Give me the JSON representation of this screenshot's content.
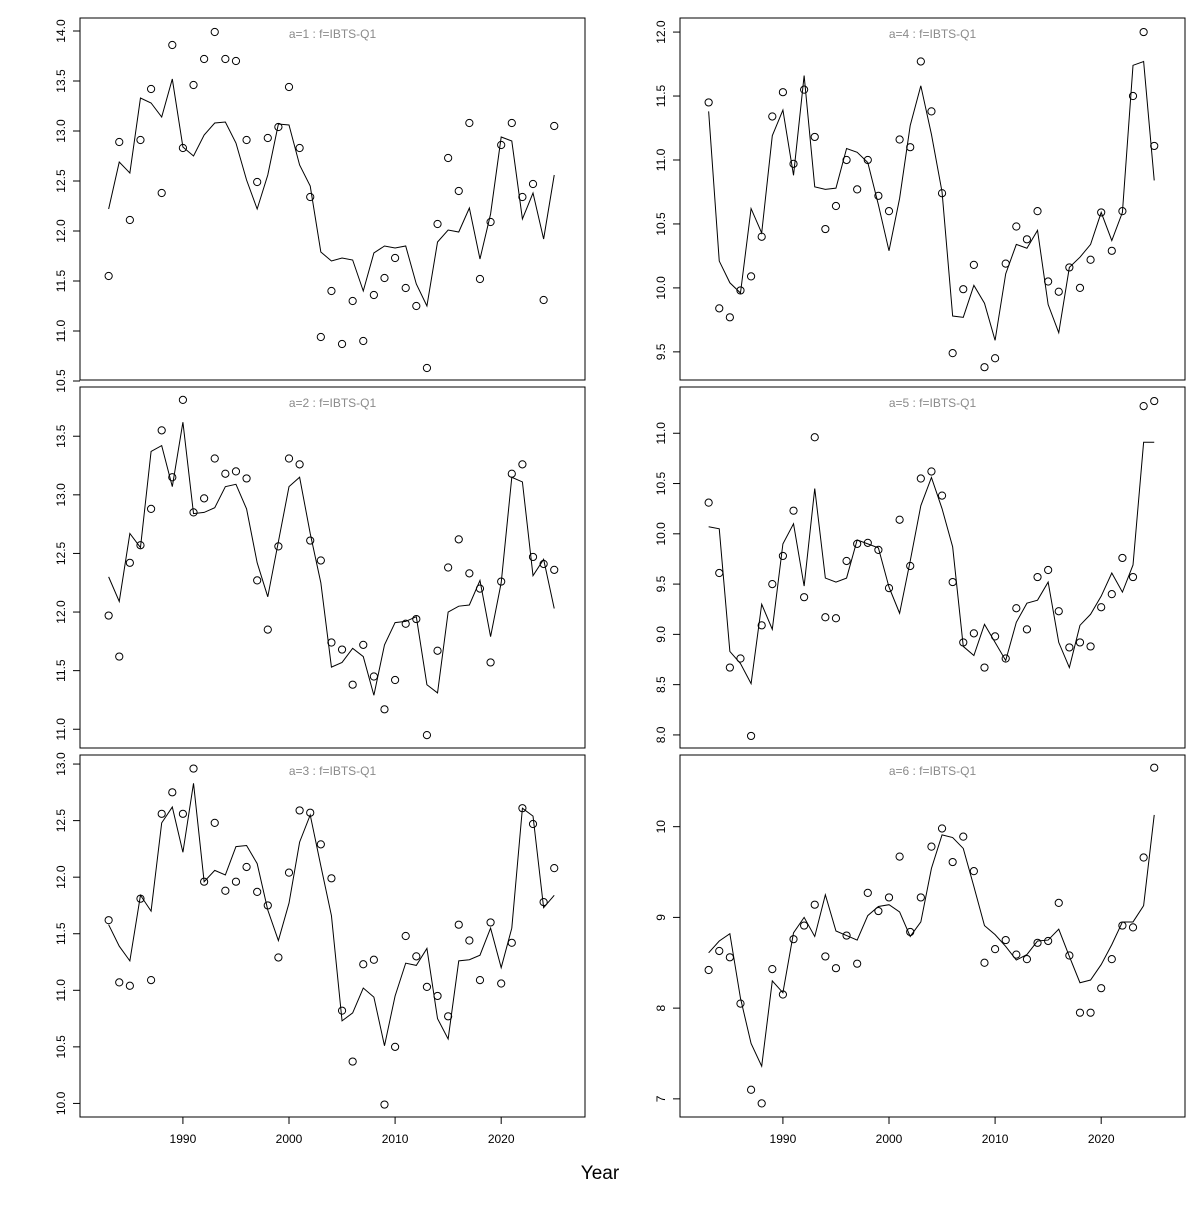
{
  "xlabel": "Year",
  "chart_data": [
    {
      "type": "line",
      "title": "a=1 : f=IBTS-Q1",
      "x": [
        1983,
        1984,
        1985,
        1986,
        1987,
        1988,
        1989,
        1990,
        1991,
        1992,
        1993,
        1994,
        1995,
        1996,
        1997,
        1998,
        1999,
        2000,
        2001,
        2002,
        2003,
        2004,
        2005,
        2006,
        2007,
        2008,
        2009,
        2010,
        2011,
        2012,
        2013,
        2014,
        2015,
        2016,
        2017,
        2018,
        2019,
        2020,
        2021,
        2022,
        2023,
        2024,
        2025
      ],
      "xlim": [
        1980.3,
        2027.9
      ],
      "ylim": [
        10.51,
        14.13
      ],
      "yticks": [
        10.5,
        {
          "value": 11,
          "label": "11.0"
        },
        11.5,
        {
          "value": 12,
          "label": "12.0"
        },
        12.5,
        {
          "value": 13,
          "label": "13.0"
        },
        13.5,
        {
          "value": 14,
          "label": "14.0"
        }
      ],
      "series": [
        {
          "kind": "points",
          "color": "#000000",
          "values": [
            11.55,
            12.89,
            12.11,
            12.91,
            13.42,
            12.38,
            13.86,
            12.83,
            13.46,
            13.72,
            13.99,
            13.72,
            13.7,
            12.91,
            12.49,
            12.93,
            13.04,
            13.44,
            12.83,
            12.34,
            10.94,
            11.4,
            10.87,
            11.3,
            10.9,
            11.36,
            11.53,
            11.73,
            11.43,
            11.25,
            10.63,
            12.07,
            12.73,
            12.4,
            13.08,
            11.52,
            12.09,
            12.86,
            13.08,
            12.34,
            12.47,
            11.31,
            13.05
          ]
        },
        {
          "kind": "line",
          "color": "#000000",
          "values": [
            12.22,
            12.69,
            12.58,
            13.33,
            13.28,
            13.14,
            13.52,
            12.84,
            12.75,
            12.96,
            13.08,
            13.09,
            12.88,
            12.51,
            12.22,
            12.56,
            13.07,
            13.06,
            12.66,
            12.45,
            11.79,
            11.7,
            11.73,
            11.71,
            11.4,
            11.78,
            11.85,
            11.83,
            11.85,
            11.47,
            11.25,
            11.89,
            12.01,
            11.99,
            12.23,
            11.72,
            12.17,
            12.94,
            12.9,
            12.12,
            12.38,
            11.92,
            12.56
          ]
        }
      ]
    },
    {
      "type": "line",
      "title": "a=2 : f=IBTS-Q1",
      "x": [
        1983,
        1984,
        1985,
        1986,
        1987,
        1988,
        1989,
        1990,
        1991,
        1992,
        1993,
        1994,
        1995,
        1996,
        1997,
        1998,
        1999,
        2000,
        2001,
        2002,
        2003,
        2004,
        2005,
        2006,
        2007,
        2008,
        2009,
        2010,
        2011,
        2012,
        2013,
        2014,
        2015,
        2016,
        2017,
        2018,
        2019,
        2020,
        2021,
        2022,
        2023,
        2024,
        2025
      ],
      "xlim": [
        1980.3,
        2027.9
      ],
      "ylim": [
        10.84,
        13.92
      ],
      "yticks": [
        {
          "value": 11,
          "label": "11.0"
        },
        11.5,
        {
          "value": 12,
          "label": "12.0"
        },
        12.5,
        {
          "value": 13,
          "label": "13.0"
        },
        13.5
      ],
      "series": [
        {
          "kind": "points",
          "color": "#000000",
          "values": [
            11.97,
            11.62,
            12.42,
            12.57,
            12.88,
            13.55,
            13.15,
            13.81,
            12.85,
            12.97,
            13.31,
            13.18,
            13.2,
            13.14,
            12.27,
            11.85,
            12.56,
            13.31,
            13.26,
            12.61,
            12.44,
            11.74,
            11.68,
            11.38,
            11.72,
            11.45,
            11.17,
            11.42,
            11.9,
            11.94,
            10.95,
            11.67,
            12.38,
            12.62,
            12.33,
            12.2,
            11.57,
            12.26,
            13.18,
            13.26,
            12.47,
            12.41,
            12.36
          ]
        },
        {
          "kind": "line",
          "color": "#000000",
          "values": [
            12.3,
            12.09,
            12.67,
            12.55,
            13.37,
            13.42,
            13.07,
            13.62,
            12.84,
            12.85,
            12.89,
            13.07,
            13.09,
            12.88,
            12.42,
            12.13,
            12.6,
            13.07,
            13.15,
            12.67,
            12.25,
            11.53,
            11.57,
            11.69,
            11.62,
            11.29,
            11.72,
            11.91,
            11.92,
            11.96,
            11.38,
            11.31,
            12.0,
            12.05,
            12.06,
            12.27,
            11.79,
            12.25,
            13.15,
            13.11,
            12.31,
            12.45,
            12.03
          ]
        }
      ]
    },
    {
      "type": "line",
      "title": "a=3 : f=IBTS-Q1",
      "x": [
        1983,
        1984,
        1985,
        1986,
        1987,
        1988,
        1989,
        1990,
        1991,
        1992,
        1993,
        1994,
        1995,
        1996,
        1997,
        1998,
        1999,
        2000,
        2001,
        2002,
        2003,
        2004,
        2005,
        2006,
        2007,
        2008,
        2009,
        2010,
        2011,
        2012,
        2013,
        2014,
        2015,
        2016,
        2017,
        2018,
        2019,
        2020,
        2021,
        2022,
        2023,
        2024,
        2025
      ],
      "xlim": [
        1980.3,
        2027.9
      ],
      "ylim": [
        9.88,
        13.08
      ],
      "xticks": [
        1990,
        2000,
        2010,
        2020
      ],
      "yticks": [
        {
          "value": 10,
          "label": "10.0"
        },
        10.5,
        {
          "value": 11,
          "label": "11.0"
        },
        11.5,
        {
          "value": 12,
          "label": "12.0"
        },
        12.5,
        {
          "value": 13,
          "label": "13.0"
        }
      ],
      "series": [
        {
          "kind": "points",
          "color": "#000000",
          "values": [
            11.62,
            11.07,
            11.04,
            11.81,
            11.09,
            12.56,
            12.75,
            12.56,
            12.96,
            11.96,
            12.48,
            11.88,
            11.96,
            12.09,
            11.87,
            11.75,
            11.29,
            12.04,
            12.59,
            12.57,
            12.29,
            11.99,
            10.82,
            10.37,
            11.23,
            11.27,
            9.99,
            10.5,
            11.48,
            11.3,
            11.03,
            10.95,
            10.77,
            11.58,
            11.44,
            11.09,
            11.6,
            11.06,
            11.42,
            12.61,
            12.47,
            11.78,
            12.08
          ]
        },
        {
          "kind": "line",
          "color": "#000000",
          "values": [
            11.58,
            11.39,
            11.26,
            11.84,
            11.7,
            12.48,
            12.62,
            12.22,
            12.83,
            11.96,
            12.06,
            12.02,
            12.27,
            12.28,
            12.12,
            11.71,
            11.44,
            11.77,
            12.31,
            12.55,
            12.1,
            11.66,
            10.73,
            10.8,
            11.02,
            10.94,
            10.51,
            10.95,
            11.24,
            11.22,
            11.37,
            10.75,
            10.57,
            11.26,
            11.27,
            11.31,
            11.55,
            11.2,
            11.55,
            12.61,
            12.54,
            11.73,
            11.84
          ]
        }
      ]
    },
    {
      "type": "line",
      "title": "a=4 : f=IBTS-Q1",
      "x": [
        1983,
        1984,
        1985,
        1986,
        1987,
        1988,
        1989,
        1990,
        1991,
        1992,
        1993,
        1994,
        1995,
        1996,
        1997,
        1998,
        1999,
        2000,
        2001,
        2002,
        2003,
        2004,
        2005,
        2006,
        2007,
        2008,
        2009,
        2010,
        2011,
        2012,
        2013,
        2014,
        2015,
        2016,
        2017,
        2018,
        2019,
        2020,
        2021,
        2022,
        2023,
        2024,
        2025
      ],
      "xlim": [
        1980.3,
        2027.9
      ],
      "ylim": [
        9.28,
        12.11
      ],
      "yticks": [
        9.5,
        {
          "value": 10,
          "label": "10.0"
        },
        10.5,
        {
          "value": 11,
          "label": "11.0"
        },
        11.5,
        {
          "value": 12,
          "label": "12.0"
        }
      ],
      "series": [
        {
          "kind": "points",
          "color": "#000000",
          "values": [
            11.45,
            9.84,
            9.77,
            9.98,
            10.09,
            10.4,
            11.34,
            11.53,
            10.97,
            11.55,
            11.18,
            10.46,
            10.64,
            11.0,
            10.77,
            11.0,
            10.72,
            10.6,
            11.16,
            11.1,
            11.77,
            11.38,
            10.74,
            9.49,
            9.99,
            10.18,
            9.38,
            9.45,
            10.19,
            10.48,
            10.38,
            10.6,
            10.05,
            9.97,
            10.16,
            10.0,
            10.22,
            10.59,
            10.29,
            10.6,
            11.5,
            12.0,
            11.11
          ]
        },
        {
          "kind": "line",
          "color": "#000000",
          "values": [
            11.38,
            10.21,
            10.04,
            9.96,
            10.62,
            10.43,
            11.19,
            11.39,
            10.88,
            11.66,
            10.79,
            10.77,
            10.78,
            11.09,
            11.06,
            10.98,
            10.65,
            10.29,
            10.7,
            11.27,
            11.58,
            11.2,
            10.75,
            9.78,
            9.77,
            10.02,
            9.88,
            9.59,
            10.11,
            10.34,
            10.31,
            10.45,
            9.87,
            9.65,
            10.16,
            10.24,
            10.34,
            10.59,
            10.37,
            10.59,
            11.74,
            11.77,
            10.84
          ]
        }
      ]
    },
    {
      "type": "line",
      "title": "a=5 : f=IBTS-Q1",
      "x": [
        1983,
        1984,
        1985,
        1986,
        1987,
        1988,
        1989,
        1990,
        1991,
        1992,
        1993,
        1994,
        1995,
        1996,
        1997,
        1998,
        1999,
        2000,
        2001,
        2002,
        2003,
        2004,
        2005,
        2006,
        2007,
        2008,
        2009,
        2010,
        2011,
        2012,
        2013,
        2014,
        2015,
        2016,
        2017,
        2018,
        2019,
        2020,
        2021,
        2022,
        2023,
        2024,
        2025
      ],
      "xlim": [
        1980.3,
        2027.9
      ],
      "ylim": [
        7.87,
        11.46
      ],
      "yticks": [
        {
          "value": 8,
          "label": "8.0"
        },
        8.5,
        {
          "value": 9,
          "label": "9.0"
        },
        9.5,
        {
          "value": 10,
          "label": "10.0"
        },
        10.5,
        {
          "value": 11,
          "label": "11.0"
        }
      ],
      "series": [
        {
          "kind": "points",
          "color": "#000000",
          "values": [
            10.31,
            9.61,
            8.67,
            8.76,
            7.99,
            9.09,
            9.5,
            9.78,
            10.23,
            9.37,
            10.96,
            9.17,
            9.16,
            9.73,
            9.9,
            9.91,
            9.84,
            9.46,
            10.14,
            9.68,
            10.55,
            10.62,
            10.38,
            9.52,
            8.92,
            9.01,
            8.67,
            8.98,
            8.76,
            9.26,
            9.05,
            9.57,
            9.64,
            9.23,
            8.87,
            8.92,
            8.88,
            9.27,
            9.4,
            9.76,
            9.57,
            11.27,
            11.32
          ]
        },
        {
          "kind": "line",
          "color": "#000000",
          "values": [
            10.07,
            10.05,
            8.83,
            8.71,
            8.51,
            9.3,
            9.05,
            9.9,
            10.1,
            9.48,
            10.45,
            9.56,
            9.52,
            9.56,
            9.94,
            9.9,
            9.86,
            9.47,
            9.21,
            9.73,
            10.28,
            10.56,
            10.25,
            9.87,
            8.88,
            8.79,
            9.1,
            8.92,
            8.74,
            9.12,
            9.31,
            9.34,
            9.52,
            8.92,
            8.67,
            9.09,
            9.2,
            9.38,
            9.61,
            9.42,
            9.69,
            10.91,
            10.91
          ]
        }
      ]
    },
    {
      "type": "line",
      "title": "a=6 : f=IBTS-Q1",
      "x": [
        1983,
        1984,
        1985,
        1986,
        1987,
        1988,
        1989,
        1990,
        1991,
        1992,
        1993,
        1994,
        1995,
        1996,
        1997,
        1998,
        1999,
        2000,
        2001,
        2002,
        2003,
        2004,
        2005,
        2006,
        2007,
        2008,
        2009,
        2010,
        2011,
        2012,
        2013,
        2014,
        2015,
        2016,
        2017,
        2018,
        2019,
        2020,
        2021,
        2022,
        2023,
        2024,
        2025
      ],
      "xlim": [
        1980.3,
        2027.9
      ],
      "ylim": [
        6.8,
        10.79
      ],
      "xticks": [
        1990,
        2000,
        2010,
        2020
      ],
      "yticks": [
        7,
        8,
        9,
        10
      ],
      "series": [
        {
          "kind": "points",
          "color": "#000000",
          "values": [
            8.42,
            8.63,
            8.56,
            8.05,
            7.1,
            6.95,
            8.43,
            8.15,
            8.76,
            8.91,
            9.14,
            8.57,
            8.44,
            8.8,
            8.49,
            9.27,
            9.07,
            9.22,
            9.67,
            8.84,
            9.22,
            9.78,
            9.98,
            9.61,
            9.89,
            9.51,
            8.5,
            8.65,
            8.75,
            8.59,
            8.54,
            8.72,
            8.74,
            9.16,
            8.58,
            7.95,
            7.95,
            8.22,
            8.54,
            8.91,
            8.89,
            9.66,
            10.65
          ]
        },
        {
          "kind": "line",
          "color": "#000000",
          "values": [
            8.61,
            8.74,
            8.82,
            8.11,
            7.61,
            7.36,
            8.3,
            8.17,
            8.83,
            9.0,
            8.79,
            9.25,
            8.85,
            8.8,
            8.75,
            9.02,
            9.12,
            9.14,
            9.06,
            8.79,
            8.95,
            9.54,
            9.91,
            9.88,
            9.76,
            9.34,
            8.91,
            8.81,
            8.68,
            8.53,
            8.59,
            8.74,
            8.75,
            8.87,
            8.57,
            8.28,
            8.31,
            8.48,
            8.7,
            8.95,
            8.95,
            9.13,
            10.13
          ]
        }
      ]
    }
  ]
}
